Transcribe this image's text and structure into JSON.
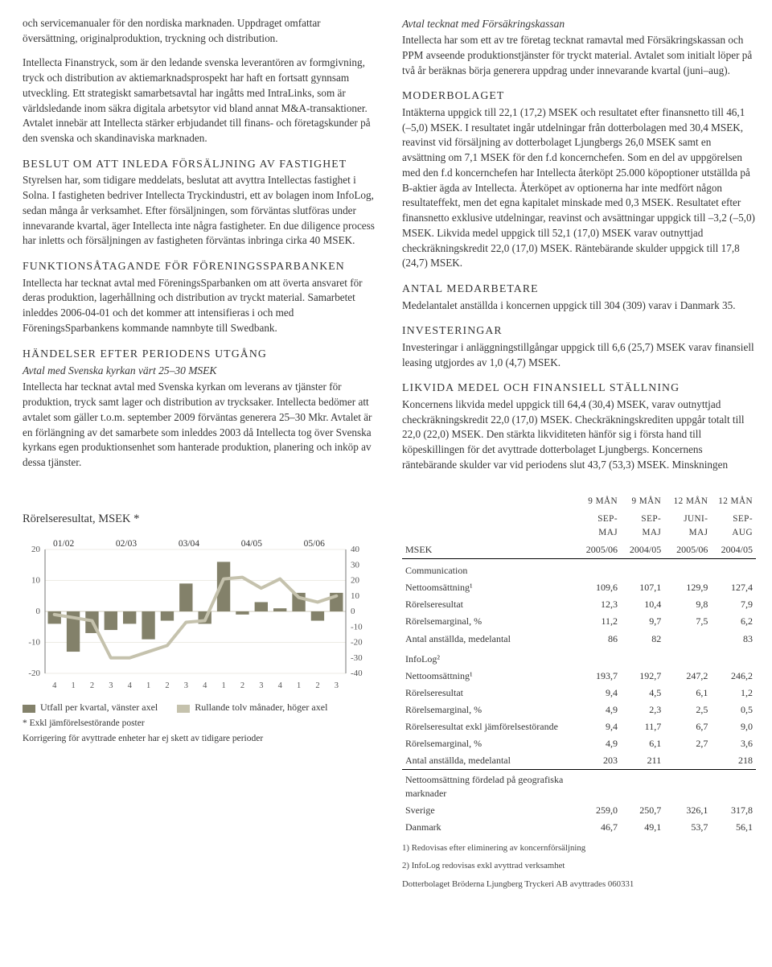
{
  "left": {
    "intro": "och servicemanualer för den nordiska marknaden. Uppdraget omfattar översättning, originalproduktion, tryckning och distribution.",
    "p1": "Intellecta Finanstryck, som är den ledande svenska leverantören av formgivning, tryck och distribution av aktiemarknadsprospekt har haft en fortsatt gynnsam utveckling. Ett strategiskt samarbetsavtal har ingåtts med IntraLinks, som är världsledande inom säkra digitala arbetsytor vid bland annat M&A-transaktioner. Avtalet innebär att Intellecta stärker erbjudandet till finans- och företagskunder på den svenska och skandinaviska marknaden.",
    "h2": "BESLUT OM ATT INLEDA FÖRSÄLJNING AV FASTIGHET",
    "p2": "Styrelsen har, som tidigare meddelats, beslutat att avyttra Intellectas fastighet i Solna. I fastigheten bedriver Intellecta Tryckindustri, ett av bolagen inom InfoLog, sedan många år verksamhet. Efter försäljningen, som förväntas slutföras under innevarande kvartal, äger Intellecta inte några fastigheter. En due diligence process har inletts och försäljningen av fastigheten förväntas inbringa cirka 40 MSEK.",
    "h3": "FUNKTIONSÅTAGANDE FÖR FÖRENINGSSPARBANKEN",
    "p3": "Intellecta har tecknat avtal med FöreningsSparbanken om att överta ansvaret för deras produktion, lagerhållning och distribution av tryckt material. Samarbetet inleddes 2006-04-01 och det kommer att intensifieras i och med FöreningsSparbankens kommande namnbyte till Swedbank.",
    "h4": "HÄNDELSER EFTER PERIODENS UTGÅNG",
    "h4sub": "Avtal med Svenska kyrkan värt 25–30 MSEK",
    "p4": "Intellecta har tecknat avtal med Svenska kyrkan om leverans av tjänster för produktion, tryck samt lager och distribution av trycksaker. Intellecta bedömer att avtalet som gäller t.o.m. september 2009 förväntas generera 25–30 Mkr. Avtalet är en förlängning av det samarbete som inleddes 2003 då Intellecta tog över Svenska kyrkans egen produktionsenhet som hanterade produktion, planering och inköp av dessa tjänster."
  },
  "right": {
    "h1": "Avtal tecknat med Försäkringskassan",
    "p1": "Intellecta har som ett av tre företag tecknat ramavtal med Försäkringskassan och PPM avseende produktionstjänster för tryckt material. Avtalet som initialt löper på två år beräknas börja generera uppdrag under innevarande kvartal (juni–aug).",
    "h2": "MODERBOLAGET",
    "p2": "Intäkterna uppgick till 22,1 (17,2) MSEK och resultatet efter finansnetto till 46,1 (–5,0) MSEK. I resultatet ingår utdelningar från dotterbolagen med 30,4 MSEK, reavinst vid försäljning av dotterbolaget Ljungbergs 26,0 MSEK samt en avsättning om 7,1 MSEK för den f.d koncernchefen. Som en del av uppgörelsen med den f.d koncernchefen har Intellecta återköpt 25.000 köpoptioner utställda på B-aktier ägda av Intellecta. Återköpet av optionerna har inte medfört någon resultateffekt, men det egna kapitalet minskade med 0,3 MSEK. Resultatet efter finansnetto exklusive utdelningar, reavinst och avsättningar uppgick till –3,2 (–5,0) MSEK. Likvida medel uppgick till 52,1 (17,0) MSEK varav outnyttjad checkräkningskredit 22,0 (17,0) MSEK. Räntebärande skulder uppgick till 17,8 (24,7) MSEK.",
    "h3": "ANTAL MEDARBETARE",
    "p3": "Medelantalet anställda i koncernen uppgick till 304 (309) varav i Danmark 35.",
    "h4": "INVESTERINGAR",
    "p4": "Investeringar i anläggningstillgångar uppgick till 6,6 (25,7) MSEK varav finansiell leasing utgjordes av 1,0 (4,7) MSEK.",
    "h5": "LIKVIDA MEDEL OCH FINANSIELL STÄLLNING",
    "p5": "Koncernens likvida medel uppgick till 64,4 (30,4) MSEK, varav outnyttjad checkräkningskredit 22,0 (17,0) MSEK. Checkräkningskrediten uppgår totalt till 22,0 (22,0) MSEK. Den stärkta likviditeten hänför sig i första hand till köpeskillingen för det avyttrade dotterbolaget Ljungbergs. Koncernens räntebärande skulder var vid periodens slut 43,7 (53,3) MSEK. Minskningen"
  },
  "chart": {
    "title": "Rörelseresultat, MSEK *",
    "left_ticks": [
      "20",
      "10",
      "0",
      "-10",
      "-20"
    ],
    "right_ticks": [
      "40",
      "30",
      "20",
      "10",
      "0",
      "-10",
      "-20",
      "-30",
      "-40"
    ],
    "year_labels": [
      "01/02",
      "02/03",
      "03/04",
      "04/05",
      "05/06"
    ],
    "q_labels": [
      "4",
      "1",
      "2",
      "3",
      "4",
      "1",
      "2",
      "3",
      "4",
      "1",
      "2",
      "3",
      "4",
      "1",
      "2",
      "3"
    ],
    "bar_color": "#83816a",
    "line_color": "#c5c2ad",
    "grid_color": "#d9d7ca",
    "axis_color": "#777",
    "left_ylim": [
      -20,
      20
    ],
    "right_ylim": [
      -40,
      40
    ],
    "bars": [
      -4,
      -13,
      -7,
      -6,
      -4,
      -9,
      -3,
      9,
      -4,
      16,
      -1,
      3,
      1,
      6,
      -3,
      6
    ],
    "line": [
      -2,
      -4,
      -6,
      -30,
      -30,
      -26,
      -22,
      -7,
      -6,
      21,
      22,
      15,
      21,
      9,
      6,
      10
    ],
    "legend_a": "Utfall per kvartal, vänster axel",
    "legend_b": "Rullande tolv månader, höger axel",
    "foot1": "* Exkl jämförelsestörande poster",
    "foot2": "Korrigering för avyttrade enheter har ej skett av tidigare perioder"
  },
  "table": {
    "head_label": "MSEK",
    "col_top": [
      "9 MÅN",
      "9 MÅN",
      "12 MÅN",
      "12 MÅN"
    ],
    "col_sub": [
      "SEP-MAJ",
      "SEP-MAJ",
      "JUNI-MAJ",
      "SEP-AUG"
    ],
    "col_yr": [
      "2005/06",
      "2004/05",
      "2005/06",
      "2004/05"
    ],
    "sec1": "Communication",
    "rows1": [
      [
        "Nettoomsättning¹",
        "109,6",
        "107,1",
        "129,9",
        "127,4"
      ],
      [
        "Rörelseresultat",
        "12,3",
        "10,4",
        "9,8",
        "7,9"
      ],
      [
        "Rörelsemarginal, %",
        "11,2",
        "9,7",
        "7,5",
        "6,2"
      ],
      [
        "Antal anställda, medelantal",
        "86",
        "82",
        "",
        "83"
      ]
    ],
    "sec2": "InfoLog²",
    "rows2": [
      [
        "Nettoomsättning¹",
        "193,7",
        "192,7",
        "247,2",
        "246,2"
      ],
      [
        "Rörelseresultat",
        "9,4",
        "4,5",
        "6,1",
        "1,2"
      ],
      [
        "Rörelsemarginal, %",
        "4,9",
        "2,3",
        "2,5",
        "0,5"
      ],
      [
        "Rörelseresultat exkl jämförelsestörande",
        "9,4",
        "11,7",
        "6,7",
        "9,0"
      ],
      [
        "Rörelsemarginal, %",
        "4,9",
        "6,1",
        "2,7",
        "3,6"
      ],
      [
        "Antal anställda, medelantal",
        "203",
        "211",
        "",
        "218"
      ]
    ],
    "sec3": "Nettoomsättning fördelad på geografiska marknader",
    "rows3": [
      [
        "Sverige",
        "259,0",
        "250,7",
        "326,1",
        "317,8"
      ],
      [
        "Danmark",
        "46,7",
        "49,1",
        "53,7",
        "56,1"
      ]
    ],
    "foot1": "1) Redovisas efter eliminering av koncernförsäljning",
    "foot2": "2) InfoLog redovisas exkl avyttrad verksamhet",
    "foot3": "Dotterbolaget Bröderna Ljungberg Tryckeri AB avyttrades 060331"
  }
}
